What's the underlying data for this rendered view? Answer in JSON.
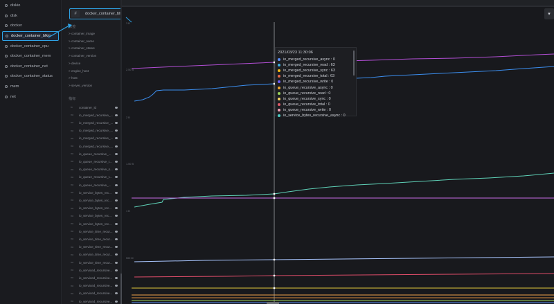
{
  "sidebar": {
    "items": [
      {
        "label": "diskio"
      },
      {
        "label": "disk"
      },
      {
        "label": "docker"
      },
      {
        "label": "docker_container_blkio"
      },
      {
        "label": "docker_container_cpu"
      },
      {
        "label": "docker_container_mem"
      },
      {
        "label": "docker_container_net"
      },
      {
        "label": "docker_container_status"
      },
      {
        "label": "mem"
      },
      {
        "label": "net"
      }
    ]
  },
  "panel": {
    "measurement_tag": {
      "hash": "#",
      "label": "docker_container_blkio"
    },
    "tags_title": "标签",
    "tags": [
      "> container_image",
      "> container_name",
      "> container_status",
      "> container_version",
      "> device",
      "> engine_host",
      "> host",
      "> server_version"
    ],
    "fields_title": "指标",
    "fields": [
      {
        "label": "container_id",
        "icon": "tx"
      },
      {
        "label": "io_merged_recursive_...",
        "icon": "no"
      },
      {
        "label": "io_merged_recursive_...",
        "icon": "no"
      },
      {
        "label": "io_merged_recursive_...",
        "icon": "no"
      },
      {
        "label": "io_merged_recursive_...",
        "icon": "no"
      },
      {
        "label": "io_merged_recursive_...",
        "icon": "no"
      },
      {
        "label": "io_queue_recursive_...",
        "icon": "no"
      },
      {
        "label": "io_queue_recursive_r...",
        "icon": "no"
      },
      {
        "label": "io_queue_recursive_s...",
        "icon": "no"
      },
      {
        "label": "io_queue_recursive_t...",
        "icon": "no"
      },
      {
        "label": "io_queue_recursive_...",
        "icon": "no"
      },
      {
        "label": "io_service_bytes_rec...",
        "icon": "no"
      },
      {
        "label": "io_service_bytes_rec...",
        "icon": "no"
      },
      {
        "label": "io_service_bytes_rec...",
        "icon": "no"
      },
      {
        "label": "io_service_bytes_rec...",
        "icon": "no"
      },
      {
        "label": "io_service_bytes_rec...",
        "icon": "no"
      },
      {
        "label": "io_service_time_recur...",
        "icon": "no"
      },
      {
        "label": "io_service_time_recur...",
        "icon": "no"
      },
      {
        "label": "io_service_time_recur...",
        "icon": "no"
      },
      {
        "label": "io_service_time_recur...",
        "icon": "no"
      },
      {
        "label": "io_service_time_recur...",
        "icon": "no"
      },
      {
        "label": "io_serviced_recursive...",
        "icon": "no"
      },
      {
        "label": "io_serviced_recursive...",
        "icon": "no"
      },
      {
        "label": "io_serviced_recursive...",
        "icon": "no"
      },
      {
        "label": "io_serviced_recursive...",
        "icon": "no"
      },
      {
        "label": "io_serviced_recursive...",
        "icon": "no"
      }
    ]
  },
  "chart": {
    "dropdown_icon": "chevron-down-icon",
    "y_labels": [
      {
        "text": "3 B"
      },
      {
        "text": "2.50 B"
      },
      {
        "text": "2 B"
      },
      {
        "text": "1.50 B"
      },
      {
        "text": "1 B"
      },
      {
        "text": "500 M"
      }
    ],
    "tooltip": {
      "time": "2021/03/23 11:30:06",
      "rows": [
        {
          "name": "io_merged_recursive_async",
          "value": "0",
          "color": "#5b8ff9"
        },
        {
          "name": "io_merged_recursive_read",
          "value": "63",
          "color": "#3fb1e3"
        },
        {
          "name": "io_merged_recursive_sync",
          "value": "63",
          "color": "#f6bd16"
        },
        {
          "name": "io_merged_recursive_total",
          "value": "63",
          "color": "#e8684a"
        },
        {
          "name": "io_merged_recursive_write",
          "value": "0",
          "color": "#6f5ef9"
        },
        {
          "name": "io_queue_recursive_async",
          "value": "0",
          "color": "#f0a830"
        },
        {
          "name": "io_queue_recursive_read",
          "value": "0",
          "color": "#9ad35a"
        },
        {
          "name": "io_queue_recursive_sync",
          "value": "0",
          "color": "#f6d365"
        },
        {
          "name": "io_queue_recursive_total",
          "value": "0",
          "color": "#e05a6a"
        },
        {
          "name": "io_queue_recursive_write",
          "value": "0",
          "color": "#f3a3b8"
        },
        {
          "name": "io_service_bytes_recursive_async",
          "value": "0",
          "color": "#4ecdc4"
        }
      ]
    }
  },
  "colors": {
    "accent": "#2fa3e6",
    "purple": "#b34fd6",
    "blue": "#3c8ff0",
    "teal": "#5fd2b8",
    "violet": "#c76be6",
    "light_blue": "#a9c6ff",
    "red": "#e04d6a",
    "yellow": "#e3c93c",
    "orange": "#f0a44a",
    "green": "#9bd45a"
  }
}
